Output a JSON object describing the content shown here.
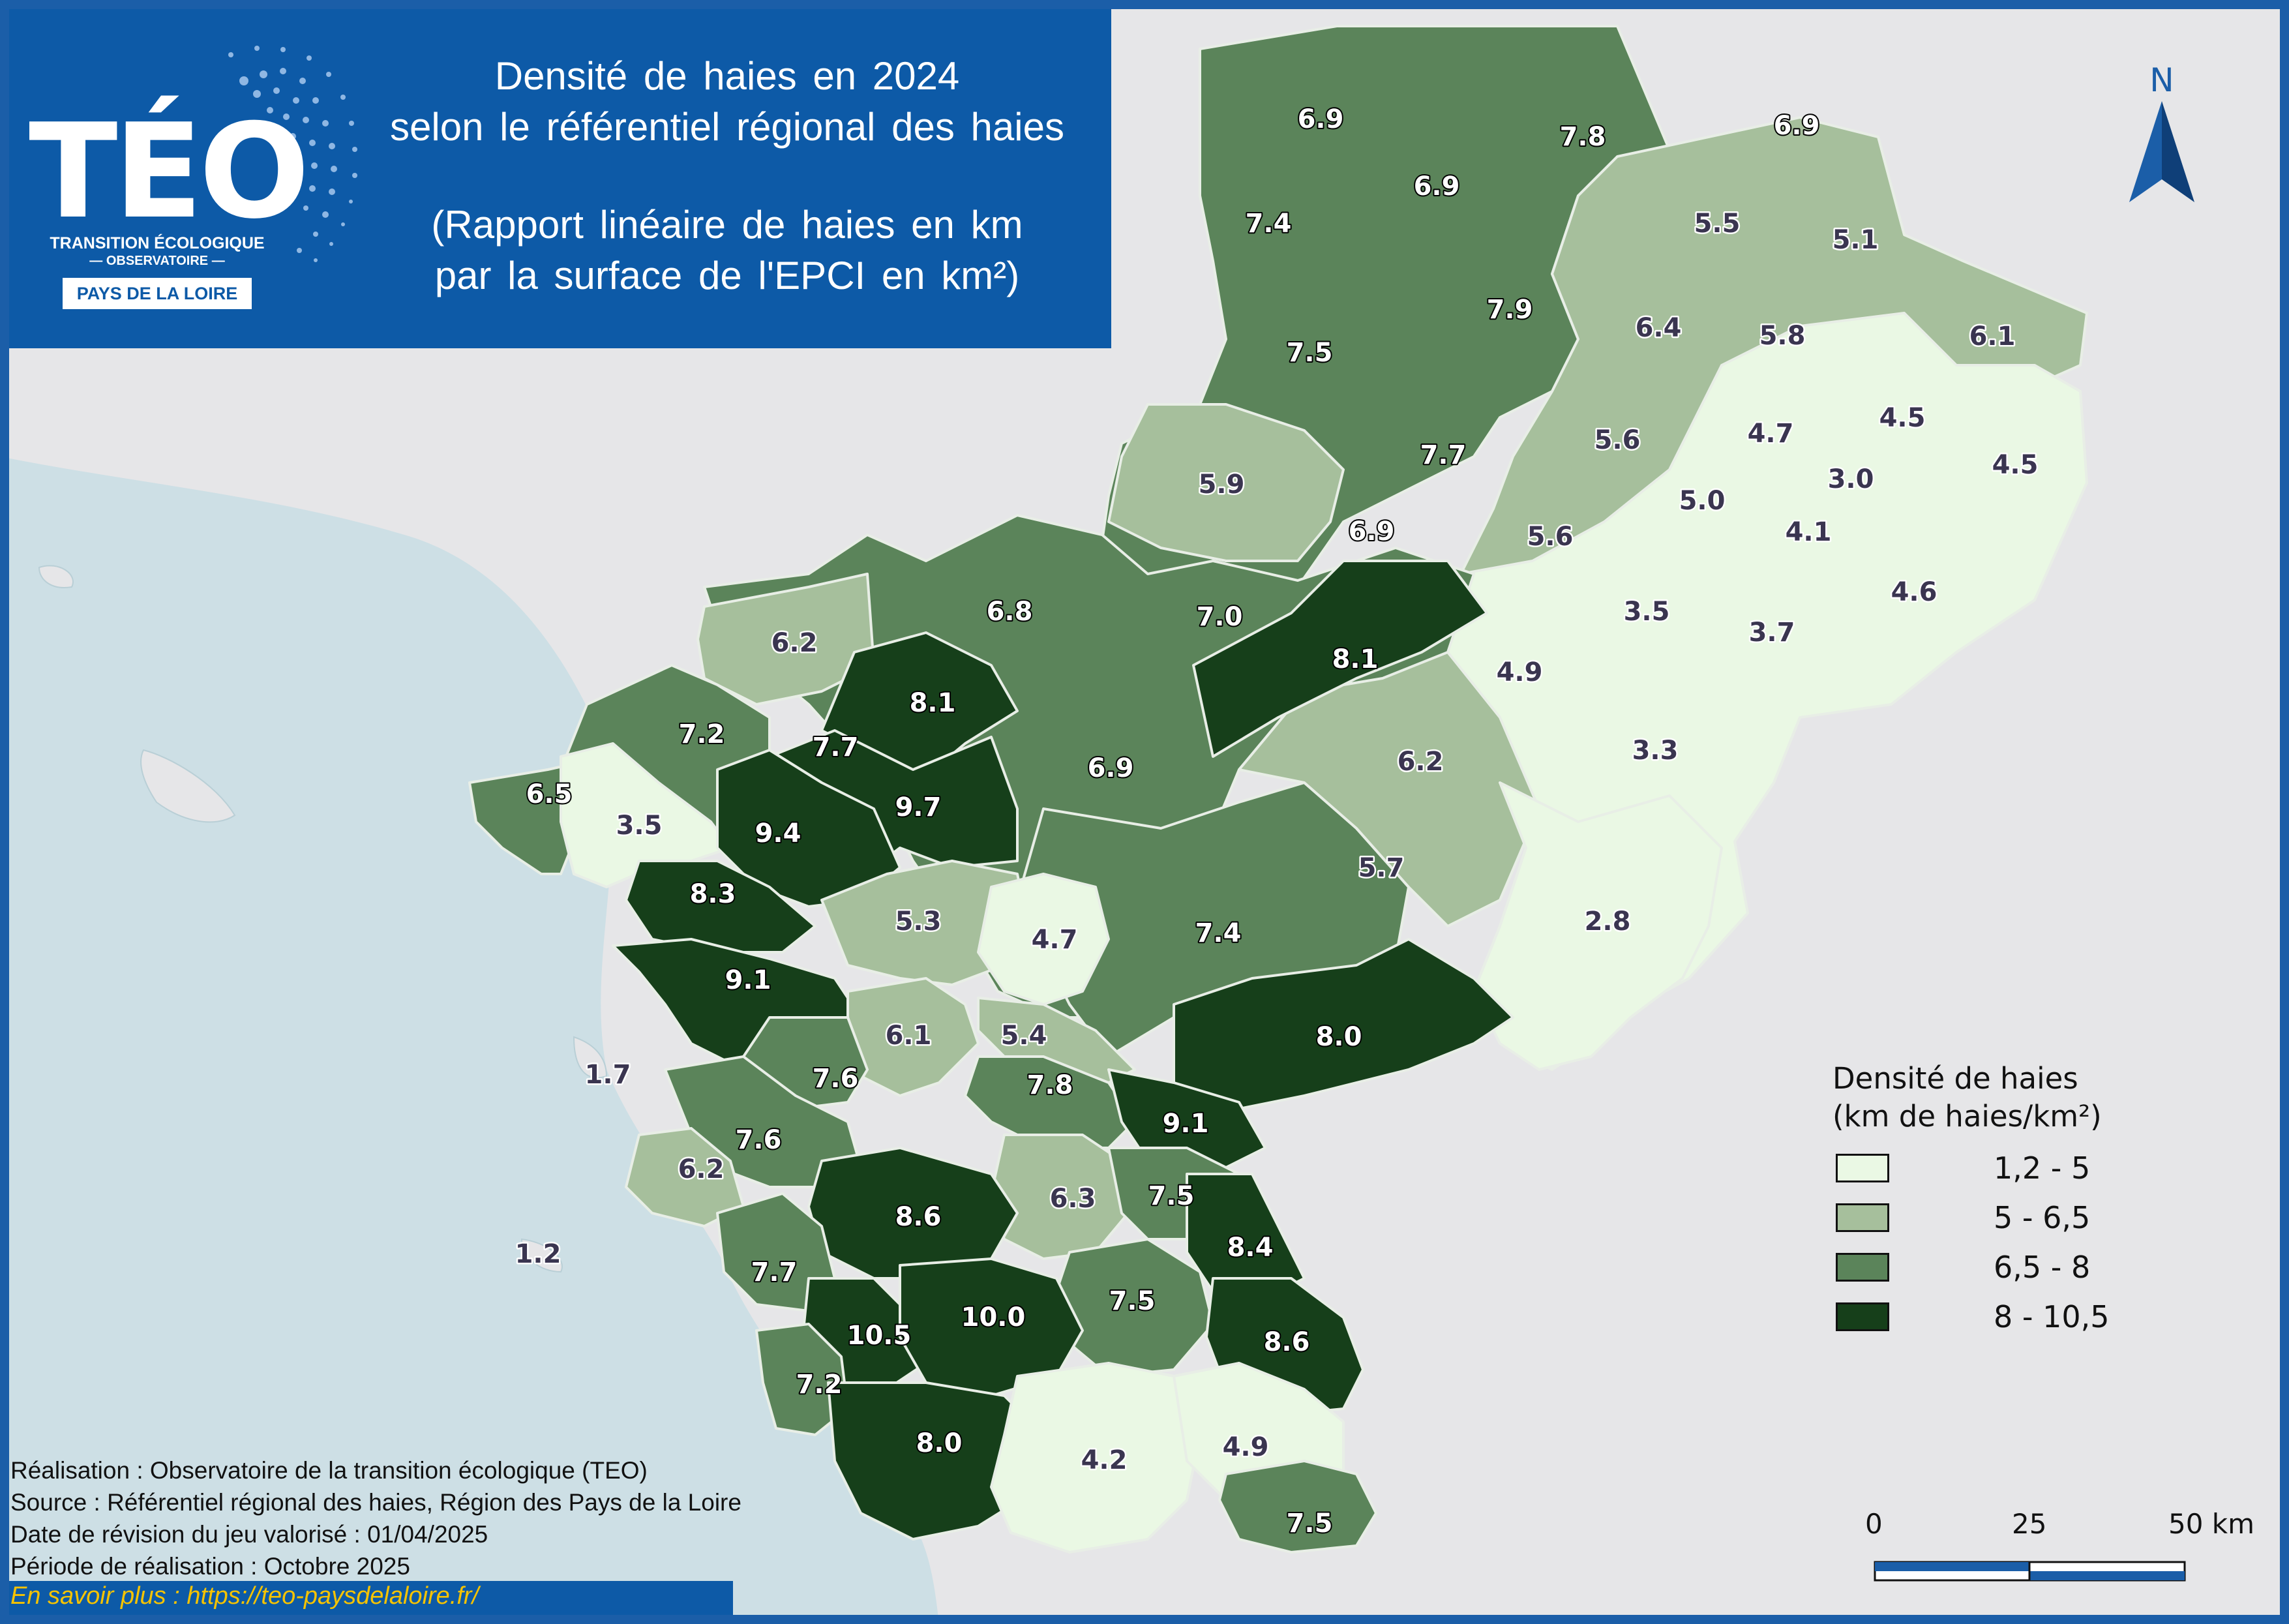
{
  "title": {
    "line1": "Densité de haies en 2024",
    "line2": "selon le référentiel régional des haies",
    "sub1": "(Rapport linéaire de haies en km",
    "sub2": "par la surface de l'EPCI en km²)"
  },
  "logo": {
    "word": "TÉO",
    "sub1": "TRANSITION ÉCOLOGIQUE",
    "sub2": "— OBSERVATOIRE —",
    "region": "PAYS DE LA LOIRE"
  },
  "north_label": "N",
  "legend": {
    "title1": "Densité de haies",
    "title2": "(km de haies/km²)",
    "classes": [
      {
        "label": "1,2 - 5",
        "color": "#eaf8e4"
      },
      {
        "label": "5 - 6,5",
        "color": "#a6bf9c"
      },
      {
        "label": "6,5 - 8",
        "color": "#5b845a"
      },
      {
        "label": "8 - 10,5",
        "color": "#163f1a"
      }
    ]
  },
  "scale": {
    "labels": [
      "0",
      "25",
      "50 km"
    ]
  },
  "credits": [
    "Réalisation : Observatoire de la transition écologique (TEO)",
    "Source : Référentiel régional des haies, Région des Pays de la Loire",
    "Date de révision du jeu valorisé : 01/04/2025",
    "Période de réalisation : Octobre 2025"
  ],
  "footer_link": "En savoir plus : https://teo-paysdelaloire.fr/",
  "map_values": [
    {
      "value": "6.9",
      "class": 2
    },
    {
      "value": "7.8",
      "class": 2
    },
    {
      "value": "6.9",
      "class": 2
    },
    {
      "value": "7.4",
      "class": 2
    },
    {
      "value": "6.9",
      "class": 2
    },
    {
      "value": "5.5",
      "class": 1
    },
    {
      "value": "5.1",
      "class": 1
    },
    {
      "value": "7.9",
      "class": 2
    },
    {
      "value": "6.4",
      "class": 1
    },
    {
      "value": "5.8",
      "class": 1
    },
    {
      "value": "6.1",
      "class": 1
    },
    {
      "value": "7.5",
      "class": 2
    },
    {
      "value": "4.7",
      "class": 0
    },
    {
      "value": "4.5",
      "class": 0
    },
    {
      "value": "4.5",
      "class": 0
    },
    {
      "value": "5.6",
      "class": 1
    },
    {
      "value": "7.7",
      "class": 2
    },
    {
      "value": "3.0",
      "class": 0
    },
    {
      "value": "5.9",
      "class": 1
    },
    {
      "value": "5.0",
      "class": 1
    },
    {
      "value": "4.1",
      "class": 0
    },
    {
      "value": "6.9",
      "class": 2
    },
    {
      "value": "5.6",
      "class": 1
    },
    {
      "value": "4.6",
      "class": 0
    },
    {
      "value": "3.5",
      "class": 0
    },
    {
      "value": "3.7",
      "class": 0
    },
    {
      "value": "6.8",
      "class": 2
    },
    {
      "value": "7.0",
      "class": 2
    },
    {
      "value": "6.2",
      "class": 1
    },
    {
      "value": "8.1",
      "class": 3
    },
    {
      "value": "4.9",
      "class": 0
    },
    {
      "value": "8.1",
      "class": 3
    },
    {
      "value": "3.3",
      "class": 0
    },
    {
      "value": "7.2",
      "class": 2
    },
    {
      "value": "7.7",
      "class": 2
    },
    {
      "value": "6.9",
      "class": 2
    },
    {
      "value": "6.2",
      "class": 1
    },
    {
      "value": "6.5",
      "class": 2
    },
    {
      "value": "9.7",
      "class": 3
    },
    {
      "value": "3.5",
      "class": 0
    },
    {
      "value": "9.4",
      "class": 3
    },
    {
      "value": "5.7",
      "class": 1
    },
    {
      "value": "8.3",
      "class": 3
    },
    {
      "value": "5.3",
      "class": 1
    },
    {
      "value": "4.7",
      "class": 0
    },
    {
      "value": "7.4",
      "class": 2
    },
    {
      "value": "2.8",
      "class": 0
    },
    {
      "value": "9.1",
      "class": 3
    },
    {
      "value": "6.1",
      "class": 1
    },
    {
      "value": "5.4",
      "class": 1
    },
    {
      "value": "8.0",
      "class": 3
    },
    {
      "value": "1.7",
      "class": 0
    },
    {
      "value": "7.6",
      "class": 2
    },
    {
      "value": "7.8",
      "class": 2
    },
    {
      "value": "9.1",
      "class": 3
    },
    {
      "value": "7.6",
      "class": 2
    },
    {
      "value": "6.2",
      "class": 1
    },
    {
      "value": "6.3",
      "class": 1
    },
    {
      "value": "7.5",
      "class": 2
    },
    {
      "value": "8.6",
      "class": 3
    },
    {
      "value": "8.4",
      "class": 3
    },
    {
      "value": "1.2",
      "class": 0
    },
    {
      "value": "7.7",
      "class": 2
    },
    {
      "value": "7.5",
      "class": 2
    },
    {
      "value": "10.5",
      "class": 3
    },
    {
      "value": "10.0",
      "class": 3
    },
    {
      "value": "8.6",
      "class": 3
    },
    {
      "value": "7.2",
      "class": 2
    },
    {
      "value": "8.0",
      "class": 3
    },
    {
      "value": "4.2",
      "class": 0
    },
    {
      "value": "4.9",
      "class": 0
    },
    {
      "value": "7.5",
      "class": 2
    }
  ]
}
